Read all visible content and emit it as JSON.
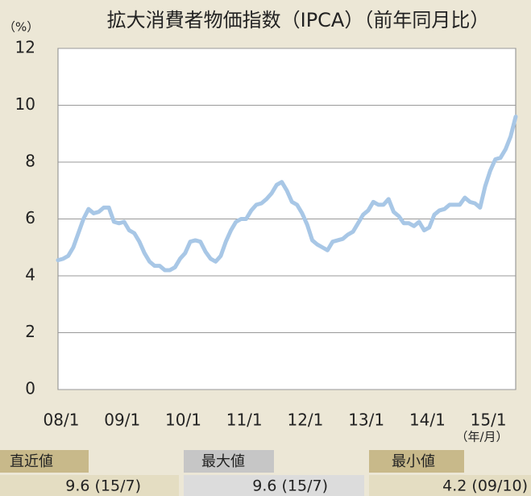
{
  "chart_data": {
    "type": "line",
    "title": "拡大消費者物価指数（IPCA）（前年同月比）",
    "y_unit": "（%）",
    "x_unit": "（年/月）",
    "categories": [
      "08/1",
      null,
      null,
      null,
      null,
      null,
      null,
      null,
      null,
      null,
      null,
      null,
      "09/1",
      null,
      null,
      null,
      null,
      null,
      null,
      null,
      null,
      null,
      null,
      null,
      "10/1",
      null,
      null,
      null,
      null,
      null,
      null,
      null,
      null,
      null,
      null,
      null,
      "11/1",
      null,
      null,
      null,
      null,
      null,
      null,
      null,
      null,
      null,
      null,
      null,
      "12/1",
      null,
      null,
      null,
      null,
      null,
      null,
      null,
      null,
      null,
      null,
      null,
      "13/1",
      null,
      null,
      null,
      null,
      null,
      null,
      null,
      null,
      null,
      null,
      null,
      "14/1",
      null,
      null,
      null,
      null,
      null,
      null,
      null,
      null,
      null,
      null,
      null,
      "15/1",
      null,
      null,
      null,
      null,
      null,
      null
    ],
    "values": [
      4.55,
      4.6,
      4.7,
      5.0,
      5.5,
      6.0,
      6.35,
      6.2,
      6.25,
      6.4,
      6.4,
      5.9,
      5.85,
      5.9,
      5.6,
      5.5,
      5.2,
      4.8,
      4.5,
      4.35,
      4.35,
      4.2,
      4.2,
      4.3,
      4.6,
      4.8,
      5.2,
      5.25,
      5.2,
      4.85,
      4.6,
      4.5,
      4.7,
      5.2,
      5.6,
      5.9,
      6.0,
      6.0,
      6.3,
      6.5,
      6.55,
      6.7,
      6.9,
      7.2,
      7.3,
      7.0,
      6.6,
      6.5,
      6.2,
      5.8,
      5.25,
      5.1,
      5.0,
      4.9,
      5.2,
      5.25,
      5.3,
      5.45,
      5.55,
      5.85,
      6.15,
      6.3,
      6.6,
      6.5,
      6.5,
      6.7,
      6.25,
      6.1,
      5.85,
      5.85,
      5.75,
      5.9,
      5.6,
      5.7,
      6.15,
      6.3,
      6.35,
      6.5,
      6.5,
      6.5,
      6.75,
      6.6,
      6.55,
      6.4,
      7.15,
      7.7,
      8.1,
      8.15,
      8.45,
      8.9,
      9.6
    ],
    "color": "#a8c7e6",
    "ylim": [
      0,
      12
    ],
    "yticks": [
      0,
      2,
      4,
      6,
      8,
      10,
      12
    ],
    "grid": true
  },
  "summary": [
    {
      "label": "直近値",
      "value": "9.6 (15/7)"
    },
    {
      "label": "最大値",
      "value": "9.6 (15/7)"
    },
    {
      "label": "最小値",
      "value": "4.2 (09/10)"
    }
  ]
}
